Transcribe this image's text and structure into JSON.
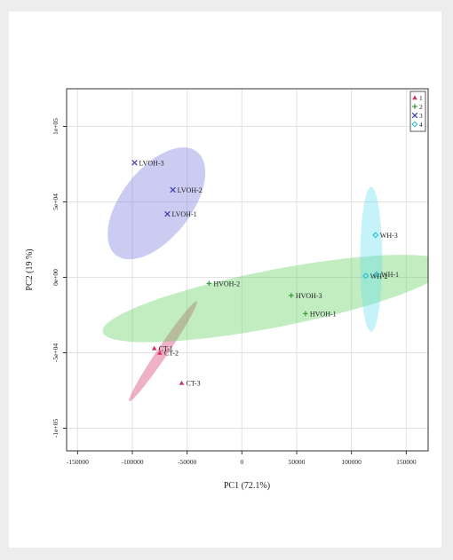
{
  "chart_data": {
    "type": "scatter",
    "xlabel": "PC1 (72.1%)",
    "ylabel": "PC2 (19 %)",
    "xlim": [
      -160000,
      170000
    ],
    "ylim": [
      -115000,
      125000
    ],
    "xticks": [
      -150000,
      -100000,
      -50000,
      0,
      50000,
      100000,
      150000
    ],
    "xtick_labels": [
      "-150000",
      "-100000",
      "-50000",
      "0",
      "50000",
      "100000",
      "150000"
    ],
    "yticks": [
      -100000,
      -50000,
      0,
      50000,
      100000
    ],
    "ytick_labels": [
      "-1e+05",
      "-5e+04",
      "0e+00",
      "5e+04",
      "1e+05"
    ],
    "grid": true,
    "legend_position": "top-right",
    "series": [
      {
        "name": "1",
        "color": "#d6336c",
        "marker": "triangle",
        "ellipse_color": "#d6336c",
        "ellipse": {
          "cx": -72000,
          "cy": -49000,
          "rx": 55000,
          "ry": 3500,
          "angle_deg": -56
        },
        "points": [
          {
            "label": "CT-1",
            "x": -80000,
            "y": -47000
          },
          {
            "label": "CT-2",
            "x": -75000,
            "y": -50000
          },
          {
            "label": "CT-3",
            "x": -55000,
            "y": -70000
          }
        ]
      },
      {
        "name": "2",
        "color": "#2e9e2e",
        "marker": "plus",
        "ellipse_color": "#5ccf5c",
        "ellipse": {
          "cx": 30000,
          "cy": -14000,
          "rx": 160000,
          "ry": 19000,
          "angle_deg": -11
        },
        "points": [
          {
            "label": "HVOH-2",
            "x": -30000,
            "y": -4000
          },
          {
            "label": "HVOH-3",
            "x": 45000,
            "y": -12000
          },
          {
            "label": "HVOH-1",
            "x": 58000,
            "y": -24000
          }
        ]
      },
      {
        "name": "3",
        "color": "#3b3bb0",
        "marker": "x",
        "ellipse_color": "#7878e0",
        "ellipse": {
          "cx": -78000,
          "cy": 49000,
          "rx": 60000,
          "ry": 23000,
          "angle_deg": -52
        },
        "points": [
          {
            "label": "LVOH-3",
            "x": -98000,
            "y": 76000
          },
          {
            "label": "LVOH-2",
            "x": -63000,
            "y": 58000
          },
          {
            "label": "LVOH-1",
            "x": -68000,
            "y": 42000
          }
        ]
      },
      {
        "name": "4",
        "color": "#22bbd0",
        "marker": "diamond",
        "ellipse_color": "#66e0f0",
        "ellipse": {
          "cx": 118000,
          "cy": 12000,
          "rx": 10000,
          "ry": 48000,
          "angle_deg": 0
        },
        "points": [
          {
            "label": "WH-3",
            "x": 122000,
            "y": 28000
          },
          {
            "label": "WH-1",
            "x": 123000,
            "y": 2000
          },
          {
            "label": "WH-2",
            "x": 113000,
            "y": 1000
          }
        ]
      }
    ]
  }
}
